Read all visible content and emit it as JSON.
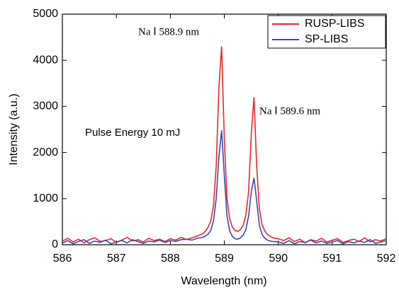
{
  "chart_data": {
    "type": "line",
    "xlabel": "Wavelength (nm)",
    "ylabel": "Intensity (a.u.)",
    "annotations": [
      "Na Ⅰ 588.9 nm",
      "Na Ⅰ 589.6 nm",
      "Pulse Energy 10 mJ"
    ],
    "x": [
      586.0,
      586.1,
      586.2,
      586.3,
      586.4,
      586.5,
      586.6,
      586.7,
      586.8,
      586.9,
      587.0,
      587.1,
      587.2,
      587.3,
      587.4,
      587.5,
      587.6,
      587.7,
      587.8,
      587.9,
      588.0,
      588.1,
      588.2,
      588.3,
      588.4,
      588.5,
      588.6,
      588.65,
      588.7,
      588.75,
      588.8,
      588.85,
      588.9,
      588.95,
      589.0,
      589.05,
      589.1,
      589.15,
      589.2,
      589.25,
      589.3,
      589.35,
      589.4,
      589.45,
      589.5,
      589.55,
      589.6,
      589.65,
      589.7,
      589.75,
      589.8,
      589.85,
      589.9,
      590.0,
      590.1,
      590.2,
      590.3,
      590.4,
      590.5,
      590.6,
      590.7,
      590.8,
      590.9,
      591.0,
      591.1,
      591.2,
      591.3,
      591.4,
      591.5,
      591.6,
      591.7,
      591.8,
      591.9,
      592.0
    ],
    "series": [
      {
        "name": "RUSP-LIBS",
        "color": "#e8262a",
        "values": [
          80,
          140,
          60,
          120,
          40,
          110,
          150,
          70,
          90,
          130,
          50,
          100,
          160,
          80,
          110,
          60,
          140,
          90,
          120,
          70,
          130,
          100,
          160,
          110,
          150,
          190,
          240,
          290,
          380,
          520,
          850,
          1700,
          3400,
          4300,
          2300,
          1000,
          560,
          380,
          310,
          290,
          330,
          420,
          640,
          1150,
          2400,
          3200,
          1700,
          780,
          430,
          300,
          220,
          180,
          150,
          130,
          90,
          150,
          70,
          120,
          40,
          110,
          80,
          140,
          60,
          100,
          130,
          50,
          90,
          120,
          70,
          150,
          60,
          110,
          80,
          130
        ]
      },
      {
        "name": "SP-LIBS",
        "color": "#3a4aa8",
        "values": [
          40,
          90,
          20,
          70,
          110,
          30,
          80,
          50,
          100,
          20,
          60,
          90,
          40,
          110,
          70,
          30,
          80,
          60,
          100,
          50,
          90,
          70,
          110,
          120,
          100,
          140,
          160,
          190,
          230,
          310,
          520,
          1000,
          1900,
          2480,
          1500,
          620,
          300,
          180,
          130,
          120,
          150,
          210,
          330,
          620,
          1150,
          1450,
          950,
          420,
          220,
          140,
          100,
          80,
          70,
          60,
          30,
          90,
          20,
          70,
          50,
          100,
          40,
          80,
          30,
          60,
          90,
          20,
          70,
          40,
          80,
          50,
          110,
          30,
          60,
          90
        ]
      }
    ],
    "xlim": [
      586,
      592
    ],
    "xticks": [
      586,
      587,
      588,
      589,
      590,
      591,
      592
    ],
    "ylim": [
      0,
      5000
    ],
    "yticks": [
      0,
      1000,
      2000,
      3000,
      4000,
      5000
    ],
    "legend": "upper right"
  }
}
